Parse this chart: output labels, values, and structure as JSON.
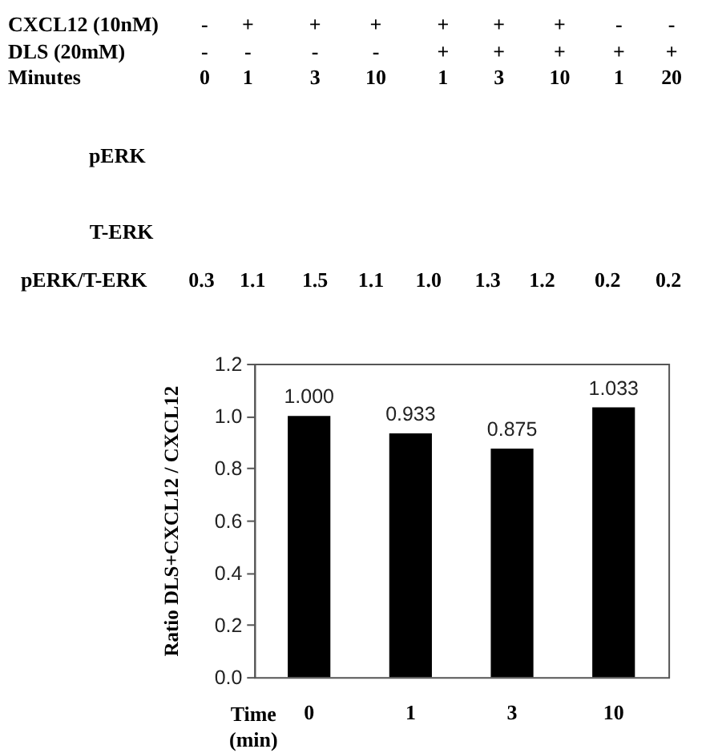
{
  "chart_data": [
    {
      "type": "other",
      "annotations": [
        "CXCL12 (10nM)",
        "-",
        "+",
        "+",
        "+",
        "+",
        "+",
        "+",
        "-",
        "-",
        "DLS (20mM)",
        "-",
        "-",
        "-",
        "-",
        "+",
        "+",
        "+",
        "+",
        "+",
        "Minutes",
        "0",
        "1",
        "3",
        "10",
        "1",
        "3",
        "10",
        "1",
        "20",
        "pERK",
        "T-ERK",
        "pERK/T-ERK",
        "0.3",
        "1.1",
        "1.5",
        "1.1",
        "1.0",
        "1.3",
        "1.2",
        "0.2",
        "0.2"
      ]
    },
    {
      "type": "bar",
      "categories": [
        "0",
        "1",
        "3",
        "10"
      ],
      "values": [
        1.0,
        0.933,
        0.875,
        1.033
      ],
      "value_labels": [
        "1.000",
        "0.933",
        "0.875",
        "1.033"
      ],
      "color": "#000000",
      "xlabel": "Time\n(min)",
      "ylabel": "Ratio DLS+CXCL12 / CXCL12",
      "ylim": [
        0,
        1.2
      ],
      "yticks": [
        {
          "value": 0,
          "label": "0.0"
        },
        0.2,
        0.4,
        0.6,
        0.8,
        {
          "value": 1,
          "label": "1.0"
        },
        1.2
      ]
    }
  ]
}
